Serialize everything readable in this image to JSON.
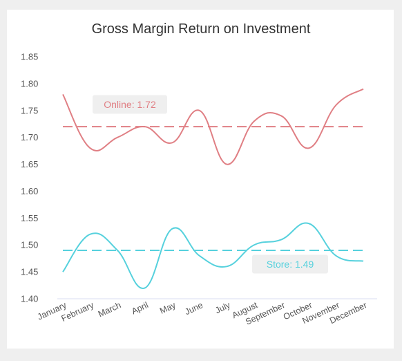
{
  "chart_data": {
    "type": "line",
    "title": "Gross Margin Return on Investment",
    "xlabel": "",
    "ylabel": "",
    "categories": [
      "January",
      "February",
      "March",
      "April",
      "May",
      "June",
      "July",
      "August",
      "September",
      "October",
      "November",
      "December"
    ],
    "yticks": [
      "1.40",
      "1.45",
      "1.50",
      "1.55",
      "1.60",
      "1.65",
      "1.70",
      "1.75",
      "1.80",
      "1.85"
    ],
    "ylim": [
      1.4,
      1.85
    ],
    "series": [
      {
        "name": "Online",
        "color": "#e07f84",
        "values": [
          1.78,
          1.68,
          1.7,
          1.72,
          1.69,
          1.75,
          1.65,
          1.73,
          1.74,
          1.68,
          1.76,
          1.79
        ],
        "average": 1.72,
        "average_label": "Online: 1.72",
        "average_line": "dashed"
      },
      {
        "name": "Store",
        "color": "#56d1dd",
        "values": [
          1.45,
          1.52,
          1.49,
          1.42,
          1.53,
          1.48,
          1.46,
          1.5,
          1.51,
          1.54,
          1.48,
          1.47
        ],
        "average": 1.49,
        "average_label": "Store: 1.49",
        "average_line": "dashed"
      }
    ],
    "grid": false,
    "legend": "none",
    "label_box_color": "#efefef"
  }
}
